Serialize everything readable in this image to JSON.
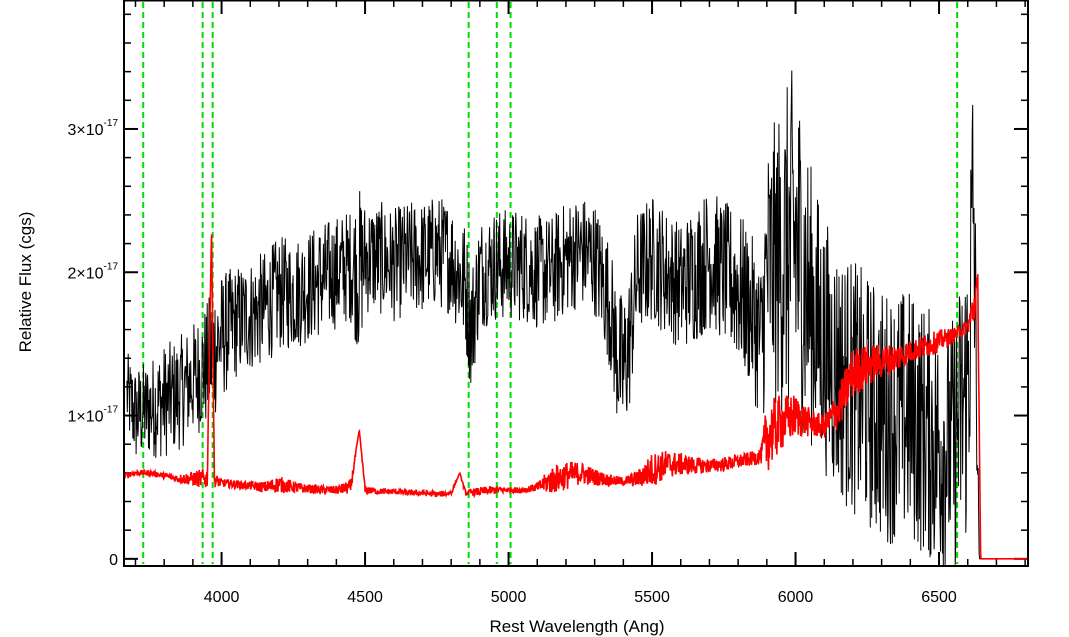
{
  "chart_data": {
    "type": "line",
    "title": "",
    "xlabel": "Rest Wavelength (Ang)",
    "ylabel": "Relative Flux (cgs)",
    "xlim": [
      3660,
      6810
    ],
    "ylim": [
      -5e-19,
      3.9e-17
    ],
    "x_ticks": [
      {
        "value": 4000,
        "label": "4000"
      },
      {
        "value": 4500,
        "label": "4500"
      },
      {
        "value": 5000,
        "label": "5000"
      },
      {
        "value": 5500,
        "label": "5500"
      },
      {
        "value": 6000,
        "label": "6000"
      },
      {
        "value": 6500,
        "label": "6500"
      }
    ],
    "y_ticks": [
      {
        "value": 0,
        "mantissa": "0",
        "exponent": ""
      },
      {
        "value": 1e-17,
        "mantissa": "1×10",
        "exponent": "-17"
      },
      {
        "value": 2e-17,
        "mantissa": "2×10",
        "exponent": "-17"
      },
      {
        "value": 3e-17,
        "mantissa": "3×10",
        "exponent": "-17"
      }
    ],
    "x_minor_step": 100,
    "y_minor_step": 2e-18,
    "grid": false,
    "legend": "none",
    "vertical_markers": [
      3727,
      3934,
      3969,
      4861,
      4959,
      5007,
      6563
    ],
    "series": [
      {
        "color": "#000000",
        "line_width": 1,
        "x": [
          3670,
          3700,
          3750,
          3800,
          3850,
          3900,
          3950,
          3970,
          4000,
          4050,
          4100,
          4150,
          4200,
          4250,
          4300,
          4350,
          4400,
          4450,
          4480,
          4500,
          4550,
          4600,
          4650,
          4700,
          4750,
          4800,
          4850,
          4870,
          4900,
          4950,
          5000,
          5050,
          5100,
          5150,
          5200,
          5250,
          5300,
          5350,
          5380,
          5400,
          5420,
          5450,
          5500,
          5550,
          5600,
          5650,
          5700,
          5750,
          5800,
          5850,
          5880,
          5900,
          5950,
          6000,
          6050,
          6100,
          6150,
          6200,
          6250,
          6300,
          6350,
          6400,
          6450,
          6500,
          6550,
          6600,
          6620,
          6640,
          6650
        ],
        "y": [
          1.15e-17,
          1e-17,
          1.05e-17,
          1.1e-17,
          1.15e-17,
          1.25e-17,
          1.35e-17,
          1.45e-17,
          1.55e-17,
          1.65e-17,
          1.7e-17,
          1.75e-17,
          1.85e-17,
          1.85e-17,
          1.9e-17,
          1.95e-17,
          2e-17,
          2.05e-17,
          2e-17,
          2.1e-17,
          2.1e-17,
          2.05e-17,
          2.1e-17,
          2.1e-17,
          2.15e-17,
          2.1e-17,
          1.9e-17,
          1.6e-17,
          2e-17,
          2.05e-17,
          2.05e-17,
          2.05e-17,
          2e-17,
          2e-17,
          2.1e-17,
          2.15e-17,
          2.1e-17,
          1.8e-17,
          1.4e-17,
          1.3e-17,
          1.5e-17,
          2e-17,
          2.1e-17,
          2e-17,
          1.9e-17,
          2e-17,
          2.1e-17,
          2e-17,
          1.9e-17,
          1.7e-17,
          1.5e-17,
          2e-17,
          2.1e-17,
          2.2e-17,
          1.8e-17,
          1.5e-17,
          1.3e-17,
          1.2e-17,
          1.1e-17,
          1e-17,
          1e-17,
          1e-17,
          9e-18,
          8e-18,
          8e-18,
          1.2e-17,
          2.5e-17,
          0.0,
          0.0
        ],
        "noise": [
          3e-18,
          3.5e-18,
          3.5e-18,
          4e-18,
          4e-18,
          4e-18,
          4.5e-18,
          5e-18,
          4.5e-18,
          4e-18,
          4e-18,
          4e-18,
          4e-18,
          4e-18,
          4e-18,
          4e-18,
          4e-18,
          4e-18,
          6e-18,
          4e-18,
          4e-18,
          4e-18,
          4e-18,
          4e-18,
          4e-18,
          4e-18,
          4.5e-18,
          4.5e-18,
          4e-18,
          4e-18,
          4e-18,
          4e-18,
          4e-18,
          4e-18,
          4e-18,
          4e-18,
          4e-18,
          4.5e-18,
          5e-18,
          5.5e-18,
          5e-18,
          4.5e-18,
          4.5e-18,
          4.5e-18,
          4.5e-18,
          5e-18,
          5e-18,
          5e-18,
          5.5e-18,
          5.5e-18,
          6e-18,
          9e-18,
          1.1e-17,
          1.3e-17,
          1e-17,
          9e-18,
          9e-18,
          9e-18,
          9e-18,
          9e-18,
          9e-18,
          9e-18,
          9e-18,
          9e-18,
          9e-18,
          1.1e-17,
          1.3e-17,
          0.0,
          0.0
        ]
      },
      {
        "color": "#ff0000",
        "line_width": 1.6,
        "x": [
          3660,
          3700,
          3750,
          3800,
          3850,
          3900,
          3950,
          3965,
          3975,
          4000,
          4050,
          4100,
          4150,
          4200,
          4250,
          4300,
          4350,
          4400,
          4450,
          4480,
          4500,
          4550,
          4600,
          4650,
          4700,
          4750,
          4800,
          4830,
          4850,
          4900,
          4950,
          5000,
          5050,
          5100,
          5150,
          5200,
          5250,
          5300,
          5350,
          5400,
          5450,
          5500,
          5550,
          5600,
          5650,
          5700,
          5750,
          5800,
          5850,
          5880,
          5900,
          5950,
          6000,
          6050,
          6100,
          6150,
          6200,
          6250,
          6300,
          6350,
          6400,
          6450,
          6500,
          6550,
          6600,
          6620,
          6635,
          6645,
          6810
        ],
        "y": [
          5.8e-18,
          6e-18,
          6e-18,
          5.8e-18,
          5.6e-18,
          5.6e-18,
          5.6e-18,
          2.3e-17,
          5.5e-18,
          5.3e-18,
          5.2e-18,
          5.1e-18,
          5e-18,
          5.2e-18,
          5e-18,
          4.9e-18,
          4.8e-18,
          4.8e-18,
          5e-18,
          9e-18,
          4.8e-18,
          4.7e-18,
          4.7e-18,
          4.6e-18,
          4.6e-18,
          4.5e-18,
          4.6e-18,
          6e-18,
          4.6e-18,
          4.7e-18,
          4.8e-18,
          4.8e-18,
          4.8e-18,
          5e-18,
          5.5e-18,
          5.8e-18,
          6e-18,
          5.7e-18,
          5.5e-18,
          5.4e-18,
          5.6e-18,
          6.2e-18,
          6.6e-18,
          6.6e-18,
          6.5e-18,
          6.5e-18,
          6.6e-18,
          6.8e-18,
          7e-18,
          7.2e-18,
          8.5e-18,
          9.5e-18,
          1e-17,
          9.5e-18,
          9.2e-18,
          1.05e-17,
          1.3e-17,
          1.35e-17,
          1.38e-17,
          1.4e-17,
          1.45e-17,
          1.48e-17,
          1.52e-17,
          1.56e-17,
          1.62e-17,
          1.75e-17,
          1.9e-17,
          0.0,
          0.0
        ],
        "noise": [
          2e-19,
          2e-19,
          2e-19,
          2e-19,
          3e-19,
          5e-19,
          8e-19,
          0.0,
          5e-19,
          3e-19,
          3e-19,
          3e-19,
          4e-19,
          6e-19,
          4e-19,
          3e-19,
          3e-19,
          3e-19,
          5e-19,
          0.0,
          3e-19,
          2e-19,
          2e-19,
          2e-19,
          2e-19,
          2e-19,
          2e-19,
          0.0,
          2e-19,
          3e-19,
          3e-19,
          2e-19,
          2e-19,
          3e-19,
          1e-18,
          1e-18,
          8e-19,
          6e-19,
          4e-19,
          3e-19,
          6e-19,
          1.2e-18,
          1e-18,
          8e-19,
          6e-19,
          5e-19,
          5e-19,
          5e-19,
          5e-19,
          6e-19,
          2.5e-18,
          2e-18,
          1.5e-18,
          1e-18,
          8e-19,
          1.5e-18,
          1.8e-18,
          1.5e-18,
          1.2e-18,
          1e-18,
          8e-19,
          8e-19,
          8e-19,
          5e-19,
          5e-19,
          1.5e-18,
          1e-18,
          0.0,
          0.0
        ]
      }
    ]
  }
}
